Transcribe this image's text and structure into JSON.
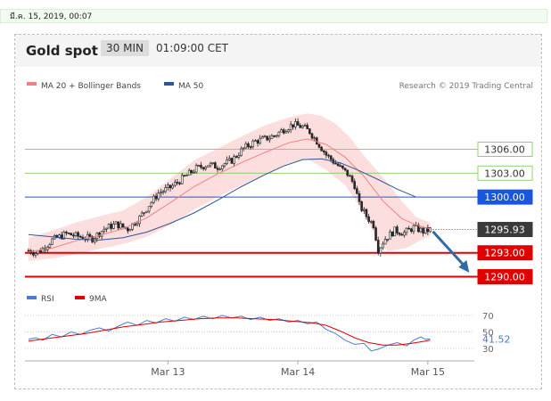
{
  "date_bar": "มี.ค. 15, 2019, 00:07",
  "header": {
    "title": "Gold spot",
    "timeframe": "30 MIN",
    "time": "01:09:00 CET"
  },
  "legend": {
    "ma20_label": "MA 20 + Bollinger Bands",
    "ma50_label": "MA 50",
    "credit": "Research © 2019 Trading Central"
  },
  "rsi_legend": {
    "rsi_label": "RSI",
    "ma_label": "9MA"
  },
  "colors": {
    "up_candle": "#2b2b2b",
    "band_fill": "#fbd3d3",
    "ma20": "#f08080",
    "ma50": "#2f5597",
    "resistance": "#8fd16f",
    "pivot": "#1a56db",
    "support": "#e00000",
    "price_tag": "#3a3a3a",
    "arrow": "#2f6aa8",
    "rsi": "#4a7bd0",
    "rsi_ma": "#e00000"
  },
  "chart_data": [
    {
      "type": "candlestick",
      "title": "Gold spot",
      "x_ticks": [
        "Mar 13",
        "Mar 14",
        "Mar 15"
      ],
      "price_levels": [
        {
          "label": "1306.00",
          "value": 1306.0,
          "kind": "resistance"
        },
        {
          "label": "1303.00",
          "value": 1303.0,
          "kind": "resistance"
        },
        {
          "label": "1300.00",
          "value": 1300.0,
          "kind": "pivot"
        },
        {
          "label": "1295.93",
          "value": 1295.93,
          "kind": "last-price"
        },
        {
          "label": "1293.00",
          "value": 1293.0,
          "kind": "support"
        },
        {
          "label": "1290.00",
          "value": 1290.0,
          "kind": "support"
        }
      ],
      "close_path": [
        [
          0,
          1293.3
        ],
        [
          3,
          1293.0
        ],
        [
          6,
          1293.5
        ],
        [
          10,
          1294.6
        ],
        [
          16,
          1295.4
        ],
        [
          22,
          1295.0
        ],
        [
          27,
          1294.8
        ],
        [
          32,
          1296.0
        ],
        [
          37,
          1296.6
        ],
        [
          42,
          1296.0
        ],
        [
          47,
          1297.4
        ],
        [
          51,
          1299.0
        ],
        [
          55,
          1300.5
        ],
        [
          60,
          1301.2
        ],
        [
          66,
          1302.5
        ],
        [
          71,
          1303.6
        ],
        [
          76,
          1304.1
        ],
        [
          80,
          1303.8
        ],
        [
          86,
          1304.6
        ],
        [
          91,
          1306.1
        ],
        [
          96,
          1307.0
        ],
        [
          100,
          1307.3
        ],
        [
          104,
          1307.7
        ],
        [
          108,
          1308.5
        ],
        [
          112,
          1309.1
        ],
        [
          116,
          1308.8
        ],
        [
          119,
          1308.2
        ],
        [
          122,
          1307.0
        ],
        [
          126,
          1305.3
        ],
        [
          130,
          1304.2
        ],
        [
          135,
          1302.9
        ],
        [
          138,
          1301.5
        ],
        [
          140,
          1299.0
        ],
        [
          143,
          1297.6
        ],
        [
          146,
          1296.5
        ],
        [
          148,
          1293.4
        ],
        [
          151,
          1294.8
        ],
        [
          155,
          1295.8
        ],
        [
          159,
          1295.5
        ],
        [
          163,
          1296.2
        ],
        [
          167,
          1295.7
        ],
        [
          170,
          1295.9
        ]
      ],
      "ma20": [
        [
          0,
          1293.1
        ],
        [
          10,
          1293.6
        ],
        [
          20,
          1294.5
        ],
        [
          30,
          1295.2
        ],
        [
          40,
          1296.0
        ],
        [
          50,
          1297.4
        ],
        [
          60,
          1299.3
        ],
        [
          70,
          1301.3
        ],
        [
          80,
          1302.9
        ],
        [
          90,
          1304.3
        ],
        [
          100,
          1305.6
        ],
        [
          110,
          1306.8
        ],
        [
          118,
          1307.3
        ],
        [
          126,
          1306.6
        ],
        [
          134,
          1305.0
        ],
        [
          142,
          1302.6
        ],
        [
          150,
          1299.5
        ],
        [
          158,
          1297.3
        ],
        [
          164,
          1296.5
        ],
        [
          170,
          1296.0
        ]
      ],
      "bollinger_upper": [
        [
          0,
          1294.9
        ],
        [
          10,
          1295.8
        ],
        [
          20,
          1296.8
        ],
        [
          30,
          1297.6
        ],
        [
          40,
          1298.3
        ],
        [
          50,
          1300.0
        ],
        [
          60,
          1302.3
        ],
        [
          70,
          1304.6
        ],
        [
          80,
          1306.1
        ],
        [
          90,
          1307.6
        ],
        [
          100,
          1309.0
        ],
        [
          110,
          1310.0
        ],
        [
          118,
          1310.5
        ],
        [
          124,
          1310.2
        ],
        [
          130,
          1309.2
        ],
        [
          136,
          1307.5
        ],
        [
          142,
          1305.2
        ],
        [
          150,
          1302.5
        ],
        [
          158,
          1299.5
        ],
        [
          164,
          1297.5
        ],
        [
          170,
          1296.8
        ]
      ],
      "bollinger_lower": [
        [
          0,
          1292.0
        ],
        [
          10,
          1292.3
        ],
        [
          20,
          1292.8
        ],
        [
          30,
          1293.5
        ],
        [
          40,
          1294.1
        ],
        [
          50,
          1295.0
        ],
        [
          60,
          1296.5
        ],
        [
          70,
          1298.4
        ],
        [
          80,
          1300.0
        ],
        [
          90,
          1301.5
        ],
        [
          100,
          1302.8
        ],
        [
          110,
          1304.2
        ],
        [
          118,
          1304.8
        ],
        [
          126,
          1303.4
        ],
        [
          134,
          1301.5
        ],
        [
          142,
          1298.0
        ],
        [
          148,
          1294.2
        ],
        [
          152,
          1293.2
        ],
        [
          160,
          1293.6
        ],
        [
          166,
          1294.6
        ],
        [
          170,
          1295.1
        ]
      ],
      "ma50": [
        [
          0,
          1295.3
        ],
        [
          10,
          1295.0
        ],
        [
          20,
          1294.7
        ],
        [
          30,
          1294.6
        ],
        [
          40,
          1294.9
        ],
        [
          50,
          1295.6
        ],
        [
          60,
          1296.7
        ],
        [
          70,
          1298.0
        ],
        [
          80,
          1299.6
        ],
        [
          90,
          1301.3
        ],
        [
          100,
          1302.8
        ],
        [
          108,
          1303.9
        ],
        [
          116,
          1304.7
        ],
        [
          124,
          1304.8
        ],
        [
          132,
          1304.3
        ],
        [
          140,
          1303.3
        ],
        [
          148,
          1302.2
        ],
        [
          156,
          1301.0
        ],
        [
          164,
          1300.0
        ]
      ],
      "projection": {
        "from": [
          170,
          1295.9
        ],
        "to": [
          182,
          1290.3
        ]
      }
    },
    {
      "type": "line",
      "title": "RSI",
      "y_ticks": [
        30,
        50,
        70
      ],
      "ylim": [
        20,
        80
      ],
      "current_value_label": "41.52",
      "series": [
        {
          "name": "RSI",
          "values": [
            [
              0,
              41
            ],
            [
              3,
              43
            ],
            [
              6,
              40
            ],
            [
              10,
              47
            ],
            [
              14,
              44
            ],
            [
              18,
              50
            ],
            [
              22,
              47
            ],
            [
              26,
              52
            ],
            [
              30,
              55
            ],
            [
              34,
              51
            ],
            [
              38,
              57
            ],
            [
              42,
              62
            ],
            [
              46,
              58
            ],
            [
              50,
              64
            ],
            [
              54,
              61
            ],
            [
              58,
              66
            ],
            [
              62,
              63
            ],
            [
              66,
              68
            ],
            [
              70,
              65
            ],
            [
              74,
              69
            ],
            [
              78,
              66
            ],
            [
              82,
              70
            ],
            [
              86,
              67
            ],
            [
              90,
              69
            ],
            [
              94,
              65
            ],
            [
              98,
              68
            ],
            [
              102,
              64
            ],
            [
              106,
              66
            ],
            [
              110,
              62
            ],
            [
              114,
              64
            ],
            [
              118,
              60
            ],
            [
              122,
              62
            ],
            [
              126,
              53
            ],
            [
              130,
              48
            ],
            [
              134,
              40
            ],
            [
              138,
              35
            ],
            [
              142,
              36
            ],
            [
              145,
              27
            ],
            [
              148,
              29
            ],
            [
              152,
              34
            ],
            [
              156,
              37
            ],
            [
              160,
              33
            ],
            [
              163,
              40
            ],
            [
              166,
              44
            ],
            [
              168,
              41
            ],
            [
              170,
              41.5
            ]
          ]
        },
        {
          "name": "9MA",
          "values": [
            [
              0,
              39
            ],
            [
              8,
              42
            ],
            [
              16,
              45
            ],
            [
              24,
              48
            ],
            [
              32,
              52
            ],
            [
              40,
              56
            ],
            [
              48,
              59
            ],
            [
              56,
              62
            ],
            [
              64,
              64
            ],
            [
              72,
              66
            ],
            [
              80,
              67
            ],
            [
              88,
              67
            ],
            [
              96,
              66
            ],
            [
              104,
              65
            ],
            [
              112,
              63
            ],
            [
              120,
              61
            ],
            [
              126,
              58
            ],
            [
              132,
              51
            ],
            [
              138,
              43
            ],
            [
              144,
              37
            ],
            [
              150,
              34
            ],
            [
              156,
              34
            ],
            [
              162,
              36
            ],
            [
              166,
              38
            ],
            [
              170,
              40
            ]
          ]
        }
      ]
    }
  ]
}
